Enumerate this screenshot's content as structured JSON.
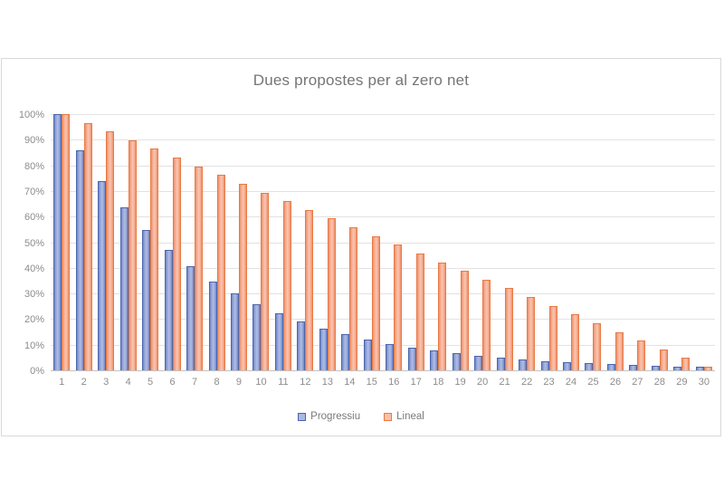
{
  "chart": {
    "title": "Dues propostes per al zero net"
  },
  "chart_data": {
    "type": "bar",
    "title": "Dues propostes per al zero net",
    "categories": [
      "1",
      "2",
      "3",
      "4",
      "5",
      "6",
      "7",
      "8",
      "9",
      "10",
      "11",
      "12",
      "13",
      "14",
      "15",
      "16",
      "17",
      "18",
      "19",
      "20",
      "21",
      "22",
      "23",
      "24",
      "25",
      "26",
      "27",
      "28",
      "29",
      "30"
    ],
    "series": [
      {
        "name": "Progressiu",
        "values": [
          100,
          86,
          74,
          63.6,
          54.7,
          47,
          40.5,
          34.8,
          29.9,
          25.7,
          22.1,
          19,
          16.4,
          14.1,
          12.1,
          10.4,
          9,
          7.7,
          6.6,
          5.7,
          4.9,
          4.2,
          3.6,
          3.1,
          2.7,
          2.3,
          2,
          1.7,
          1.5,
          1.3
        ],
        "fill_light": "#aab8e2",
        "fill_dark": "#7488c7",
        "border": "#4a66ad"
      },
      {
        "name": "Lineal",
        "values": [
          100,
          96.6,
          93.2,
          89.8,
          86.4,
          83,
          79.6,
          76.2,
          72.8,
          69.4,
          66,
          62.6,
          59.2,
          55.8,
          52.4,
          49,
          45.6,
          42.2,
          38.8,
          35.4,
          32,
          28.6,
          25.2,
          21.8,
          18.4,
          15,
          11.6,
          8.2,
          4.8,
          1.4
        ],
        "fill_light": "#f8c0aa",
        "fill_dark": "#f0906a",
        "border": "#e87a45"
      }
    ],
    "xlabel": "",
    "ylabel": "",
    "yticks": [
      "0%",
      "10%",
      "20%",
      "30%",
      "40%",
      "50%",
      "60%",
      "70%",
      "80%",
      "90%",
      "100%"
    ],
    "ylim": [
      0,
      100
    ],
    "grid": true,
    "legend_position": "bottom"
  },
  "colors": {
    "title_text": "#757575",
    "axis_text": "#8c8c8c",
    "gridline": "#e2e2e2",
    "axis_line": "#c3c3c3",
    "card_border": "#d9d9d9",
    "background": "#ffffff"
  }
}
